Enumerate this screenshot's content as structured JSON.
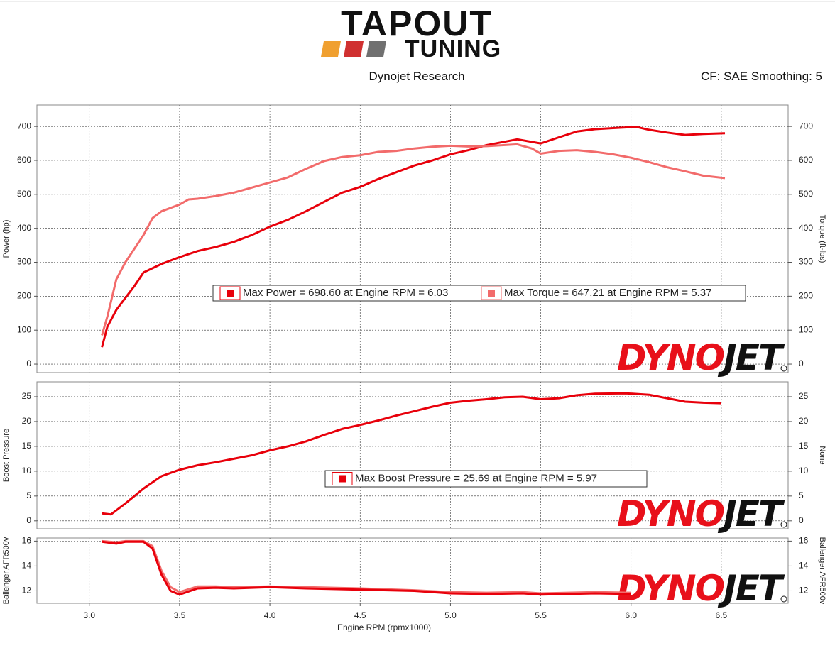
{
  "header": {
    "logo_top": "TAPOUT",
    "logo_bottom": "TUNING",
    "subtitle": "Dynojet Research",
    "settings": "CF: SAE Smoothing: 5",
    "watermark_red": "DYNO",
    "watermark_black": "JET"
  },
  "chart_data": [
    {
      "type": "line",
      "ylabel": "Power (hp)",
      "y2label": "Torque (ft-lbs)",
      "grid": true,
      "xlim": [
        2.71,
        6.87
      ],
      "ylim": [
        -25,
        763
      ],
      "yticks": [
        0,
        100,
        200,
        300,
        400,
        500,
        600,
        700
      ],
      "y2lim": [
        -25,
        763
      ],
      "y2ticks": [
        0,
        100,
        200,
        300,
        400,
        500,
        600,
        700
      ],
      "series": [
        {
          "name": "Max Power = 698.60 at Engine RPM = 6.03",
          "color": "#e8000b",
          "x": [
            3.07,
            3.1,
            3.15,
            3.2,
            3.25,
            3.3,
            3.4,
            3.5,
            3.6,
            3.7,
            3.8,
            3.9,
            4.0,
            4.1,
            4.2,
            4.3,
            4.4,
            4.5,
            4.6,
            4.7,
            4.8,
            4.9,
            5.0,
            5.1,
            5.2,
            5.3,
            5.37,
            5.5,
            5.6,
            5.7,
            5.8,
            5.9,
            6.03,
            6.1,
            6.2,
            6.3,
            6.4,
            6.52
          ],
          "values": [
            50,
            110,
            160,
            195,
            230,
            270,
            295,
            315,
            333,
            345,
            360,
            380,
            405,
            425,
            450,
            478,
            505,
            522,
            545,
            565,
            585,
            600,
            618,
            630,
            645,
            655,
            662,
            650,
            668,
            685,
            692,
            695,
            698.6,
            690,
            682,
            675,
            678,
            680
          ]
        },
        {
          "name": "Max Torque = 647.21 at Engine RPM = 5.37",
          "color": "#f26b6b",
          "axis": "y2",
          "x": [
            3.07,
            3.1,
            3.15,
            3.2,
            3.3,
            3.35,
            3.4,
            3.5,
            3.55,
            3.6,
            3.7,
            3.8,
            3.9,
            4.0,
            4.1,
            4.2,
            4.3,
            4.4,
            4.5,
            4.6,
            4.7,
            4.8,
            4.9,
            5.0,
            5.1,
            5.2,
            5.37,
            5.45,
            5.5,
            5.6,
            5.7,
            5.8,
            5.9,
            6.0,
            6.1,
            6.2,
            6.3,
            6.4,
            6.52
          ],
          "values": [
            85,
            140,
            250,
            300,
            380,
            430,
            450,
            470,
            485,
            487,
            495,
            505,
            520,
            535,
            550,
            575,
            598,
            610,
            615,
            625,
            628,
            635,
            640,
            643,
            641,
            642,
            647.21,
            635,
            620,
            628,
            630,
            625,
            618,
            608,
            595,
            580,
            568,
            555,
            548
          ]
        }
      ]
    },
    {
      "type": "line",
      "ylabel": "Boost Pressure",
      "y2label": "None",
      "grid": true,
      "xlim": [
        2.71,
        6.87
      ],
      "ylim": [
        -1.6,
        28
      ],
      "yticks": [
        0,
        5,
        10,
        15,
        20,
        25
      ],
      "y2lim": [
        -1.6,
        28
      ],
      "y2ticks": [
        0,
        5,
        10,
        15,
        20,
        25
      ],
      "series": [
        {
          "name": "Max Boost Pressure = 25.69 at Engine RPM = 5.97",
          "color": "#e8000b",
          "x": [
            3.07,
            3.12,
            3.2,
            3.3,
            3.4,
            3.5,
            3.6,
            3.7,
            3.8,
            3.9,
            4.0,
            4.1,
            4.2,
            4.3,
            4.4,
            4.5,
            4.6,
            4.7,
            4.8,
            4.9,
            5.0,
            5.1,
            5.2,
            5.3,
            5.4,
            5.5,
            5.6,
            5.7,
            5.8,
            5.97,
            6.1,
            6.2,
            6.3,
            6.4,
            6.5
          ],
          "values": [
            1.5,
            1.3,
            3.5,
            6.5,
            9,
            10.3,
            11.2,
            11.8,
            12.5,
            13.2,
            14.2,
            15,
            16,
            17.3,
            18.5,
            19.3,
            20.2,
            21.2,
            22.1,
            23,
            23.8,
            24.2,
            24.5,
            24.9,
            25,
            24.5,
            24.7,
            25.3,
            25.6,
            25.69,
            25.4,
            24.7,
            24,
            23.8,
            23.7
          ]
        }
      ]
    },
    {
      "type": "line",
      "ylabel": "Ballenger AFR500v",
      "y2label": "Ballenger AFR500v",
      "xlabel": "Engine RPM (rpmx1000)",
      "grid": true,
      "xlim": [
        2.71,
        6.87
      ],
      "xticks": [
        {
          "value": 3,
          "label": "3.0"
        },
        3.5,
        {
          "value": 4,
          "label": "4.0"
        },
        4.5,
        {
          "value": 5,
          "label": "5.0"
        },
        5.5,
        {
          "value": 6,
          "label": "6.0"
        },
        6.5
      ],
      "ylim": [
        11,
        16.25
      ],
      "yticks": [
        12,
        14,
        16
      ],
      "y2lim": [
        11,
        16.25
      ],
      "y2ticks": [
        12,
        14,
        16
      ],
      "series": [
        {
          "color": "#f26b6b",
          "x": [
            3.07,
            3.15,
            3.2,
            3.3,
            3.35,
            3.4,
            3.45,
            3.5,
            3.6,
            3.7,
            3.8,
            4.0,
            4.2,
            4.5,
            4.8,
            5.0,
            5.2,
            5.4,
            5.5,
            5.8,
            6.0
          ],
          "values": [
            16,
            15.9,
            16,
            16,
            15.6,
            13.6,
            12.3,
            11.9,
            12.35,
            12.35,
            12.3,
            12.35,
            12.3,
            12.2,
            12.05,
            11.9,
            11.85,
            11.9,
            11.8,
            11.9,
            11.85
          ]
        },
        {
          "color": "#e8000b",
          "x": [
            3.07,
            3.15,
            3.2,
            3.3,
            3.35,
            3.4,
            3.45,
            3.5,
            3.6,
            3.7,
            3.8,
            4.0,
            4.2,
            4.5,
            4.8,
            5.0,
            5.2,
            5.4,
            5.5,
            5.8,
            6.0
          ],
          "values": [
            15.95,
            15.8,
            15.95,
            15.95,
            15.4,
            13.3,
            12.0,
            11.7,
            12.2,
            12.25,
            12.2,
            12.3,
            12.2,
            12.1,
            12.0,
            11.8,
            11.75,
            11.8,
            11.7,
            11.8,
            11.75
          ]
        }
      ]
    }
  ]
}
